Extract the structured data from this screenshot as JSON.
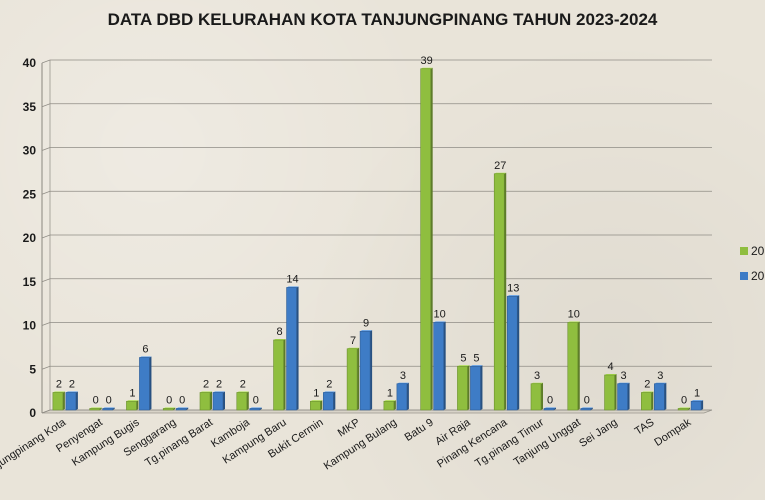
{
  "chart_data": {
    "type": "bar",
    "title": "DATA DBD KELURAHAN KOTA TANJUNGPINANG TAHUN 2023-2024",
    "xlabel": "",
    "ylabel": "",
    "ylim": [
      0,
      40
    ],
    "yticks": [
      0,
      5,
      10,
      15,
      20,
      25,
      30,
      35,
      40
    ],
    "grid": true,
    "legend_position": "right",
    "categories": [
      "Tanjungpinang Kota",
      "Penyengat",
      "Kampung Bugis",
      "Senggarang",
      "Tg.pinang Barat",
      "Kamboja",
      "Kampung Baru",
      "Bukit Cermin",
      "MKP",
      "Kampung Bulang",
      "Batu 9",
      "Air Raja",
      "Pinang Kencana",
      "Tg.pinang Timur",
      "Tanjung Unggat",
      "Sei Jang",
      "TAS",
      "Dompak"
    ],
    "series": [
      {
        "name": "20",
        "color": "#8fbe3f",
        "values": [
          2,
          0,
          1,
          0,
          2,
          2,
          8,
          1,
          7,
          1,
          39,
          5,
          27,
          3,
          10,
          4,
          2,
          0
        ]
      },
      {
        "name": "20",
        "color": "#3e7cc6",
        "values": [
          2,
          0,
          6,
          0,
          2,
          0,
          14,
          2,
          9,
          3,
          10,
          5,
          13,
          0,
          0,
          3,
          3,
          1
        ]
      }
    ]
  }
}
